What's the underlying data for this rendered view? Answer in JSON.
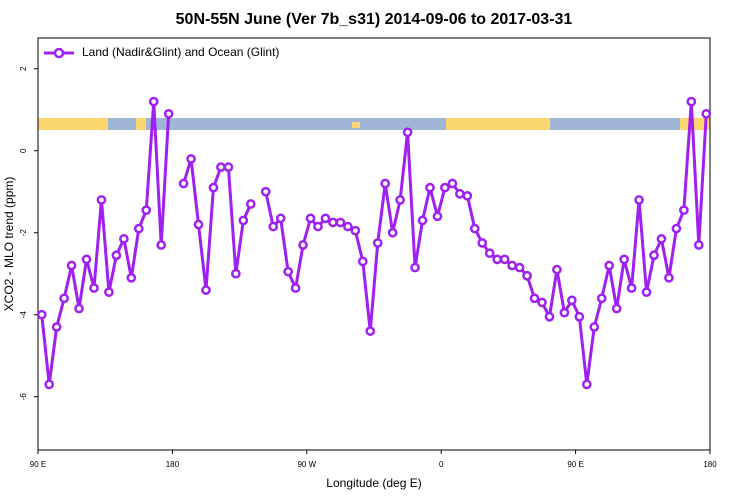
{
  "chart_data": {
    "type": "line",
    "title": "50N-55N June (Ver 7b_s31)   2014-09-06 to 2017-03-31",
    "xlabel": "Longitude (deg E)",
    "ylabel": "XCO2 - MLO trend (ppm)",
    "x": [
      92.5,
      97.5,
      102.5,
      107.5,
      112.5,
      117.5,
      122.5,
      127.5,
      132.5,
      137.5,
      142.5,
      147.5,
      152.5,
      157.5,
      162.5,
      167.5,
      172.5,
      177.5,
      182.5,
      187.5,
      192.5,
      197.5,
      202.5,
      207.5,
      212.5,
      217.5,
      222.5,
      227.5,
      232.5,
      237.5,
      242.5,
      247.5,
      252.5,
      257.5,
      262.5,
      267.5,
      272.5,
      277.5,
      282.5,
      287.5,
      292.5,
      297.5,
      302.5,
      307.5,
      312.5,
      317.5,
      322.5,
      327.5,
      332.5,
      337.5,
      342.5,
      347.5,
      352.5,
      357.5,
      362.5,
      367.5,
      372.5,
      377.5,
      382.5,
      387.5,
      392.5,
      397.5,
      402.5,
      407.5,
      412.5,
      417.5,
      422.5,
      427.5,
      432.5,
      437.5,
      442.5,
      447.5,
      452.5,
      457.5,
      462.5,
      467.5,
      472.5,
      477.5,
      482.5,
      487.5,
      492.5,
      497.5,
      502.5,
      507.5,
      512.5,
      517.5,
      522.5,
      527.5,
      532.5,
      537.5
    ],
    "series": [
      {
        "name": "Land (Nadir&Glint) and Ocean (Glint)",
        "color": "#a020f0",
        "values": [
          -4.0,
          -5.7,
          -4.3,
          -3.6,
          -2.8,
          -3.85,
          -2.65,
          -3.35,
          -1.2,
          -3.45,
          -2.55,
          -2.15,
          -3.1,
          -1.9,
          -1.45,
          1.2,
          -2.3,
          0.9,
          null,
          -0.8,
          -0.2,
          -1.8,
          -3.4,
          -0.9,
          -0.4,
          -0.4,
          -3.0,
          -1.7,
          -1.3,
          null,
          -1.0,
          -1.85,
          -1.65,
          -2.95,
          -3.35,
          -2.3,
          -1.65,
          -1.85,
          -1.65,
          -1.75,
          -1.75,
          -1.85,
          -1.95,
          -2.7,
          -4.4,
          -2.25,
          -0.8,
          -2.0,
          -1.2,
          0.45,
          -2.85,
          -1.7,
          -0.9,
          -1.6,
          -0.9,
          -0.8,
          -1.05,
          -1.1,
          -1.9,
          -2.25,
          -2.5,
          -2.65,
          -2.65,
          -2.8,
          -2.85,
          -3.05,
          -3.6,
          -3.7,
          -4.05,
          -2.9,
          -3.95,
          -3.65,
          -4.05,
          -5.7,
          -4.3,
          -3.6,
          -2.8,
          -3.85,
          -2.65,
          -3.35,
          -1.2,
          -3.45,
          -2.55,
          -2.15,
          -3.1,
          -1.9,
          -1.45,
          1.2,
          -2.3,
          0.9
        ]
      }
    ],
    "xlim": [
      90,
      540
    ],
    "xticks": [
      {
        "value": 90,
        "label": "90 E"
      },
      180,
      {
        "value": 270,
        "label": "90 W"
      },
      {
        "value": 360,
        "label": "0"
      },
      {
        "value": 450,
        "label": "90 E"
      },
      {
        "value": 540,
        "label": "180"
      }
    ],
    "ylim": [
      -7.3,
      2.75
    ],
    "yticks": [
      2,
      0,
      -2,
      -4,
      -6
    ],
    "legend": "top-left"
  }
}
